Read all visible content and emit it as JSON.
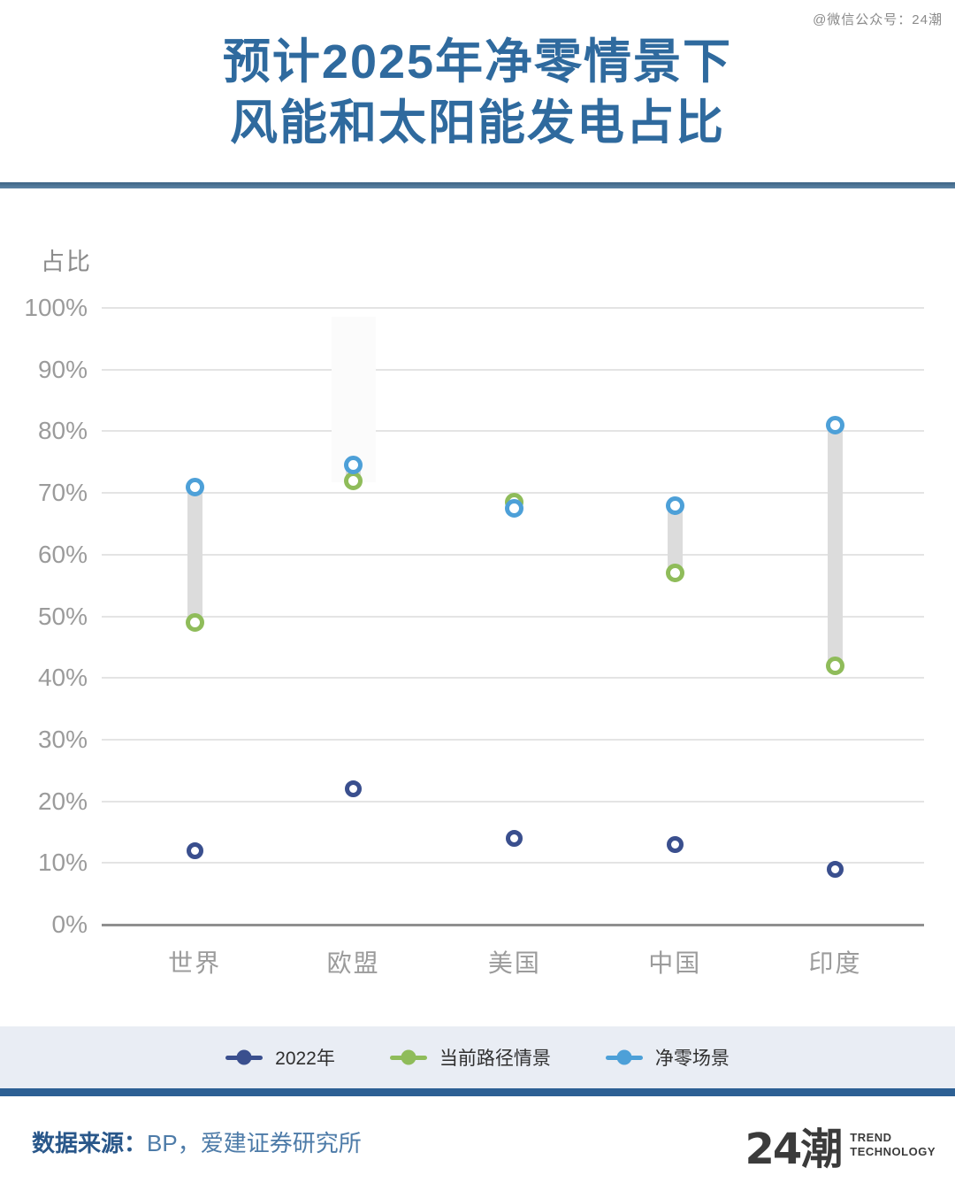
{
  "page": {
    "watermark": "@微信公众号：24潮",
    "title_line1": "预计2025年净零情景下",
    "title_line2": "风能和太阳能发电占比"
  },
  "chart_data": {
    "type": "scatter",
    "title": "预计2025年净零情景下风能和太阳能发电占比",
    "ylabel": "占比",
    "xlabel": "",
    "categories": [
      "世界",
      "欧盟",
      "美国",
      "中国",
      "印度"
    ],
    "series": [
      {
        "name": "2022年",
        "color": "#3a4f8e",
        "marker": "ring",
        "values": [
          12,
          22,
          14,
          13,
          9
        ]
      },
      {
        "name": "当前路径情景",
        "color": "#8fbc5a",
        "marker": "ring",
        "values": [
          49,
          72,
          68.5,
          57,
          42
        ]
      },
      {
        "name": "净零场景",
        "color": "#4da0d8",
        "marker": "ring",
        "values": [
          71,
          74.5,
          67.5,
          68,
          81
        ]
      }
    ],
    "connector": {
      "between": [
        "当前路径情景",
        "净零场景"
      ],
      "color": "#dcdcdc"
    },
    "ylim": [
      0,
      100
    ],
    "yticks": [
      "0%",
      "10%",
      "20%",
      "30%",
      "40%",
      "50%",
      "60%",
      "70%",
      "80%",
      "90%",
      "100%"
    ],
    "grid": true,
    "legend_position": "bottom"
  },
  "footer": {
    "source_label": "数据来源：",
    "source_text": "BP，爱建证券研究所",
    "logo_text": "24潮",
    "logo_sub1": "TREND",
    "logo_sub2": "TECHNOLOGY"
  }
}
